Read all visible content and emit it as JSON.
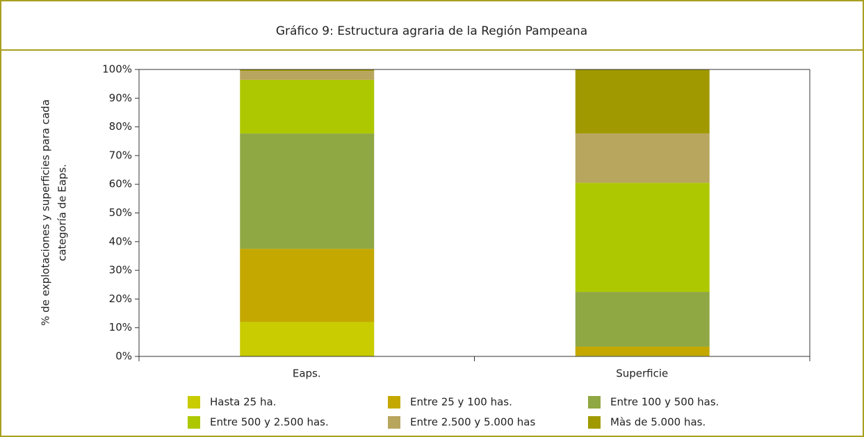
{
  "chart_data": {
    "type": "stacked_bar",
    "title": "Gráfico 9: Estructura agraria de la Región Pampeana",
    "ylabel": [
      "% de explotaciones y superficies para cada",
      "categoría de Eaps."
    ],
    "categories": [
      "Eaps.",
      "Superficie"
    ],
    "series": [
      {
        "name": "Hasta 25 ha.",
        "color": "#c8cc00",
        "values": [
          12,
          0.2
        ]
      },
      {
        "name": "Entre 25 y 100 has.",
        "color": "#c4a800",
        "values": [
          25.5,
          3.2
        ]
      },
      {
        "name": "Entre 100 y 500 has.",
        "color": "#8fa843",
        "values": [
          40.2,
          19.1
        ]
      },
      {
        "name": "Entre 500 y 2.500 has.",
        "color": "#adc800",
        "values": [
          18.7,
          38
        ]
      },
      {
        "name": "Entre 2.500 y 5.000 has",
        "color": "#b8a55e",
        "values": [
          3.1,
          17.2
        ]
      },
      {
        "name": "Màs de 5.000 has.",
        "color": "#a09a00",
        "values": [
          0.5,
          22.3
        ]
      }
    ],
    "ylim": [
      0,
      100
    ],
    "yticks": [
      {
        "value": 0,
        "label": "0%"
      },
      {
        "value": 10,
        "label": "10%"
      },
      {
        "value": 20,
        "label": "20%"
      },
      {
        "value": 30,
        "label": "30%"
      },
      {
        "value": 40,
        "label": "40%"
      },
      {
        "value": 50,
        "label": "50%"
      },
      {
        "value": 60,
        "label": "60%"
      },
      {
        "value": 70,
        "label": "70%"
      },
      {
        "value": 80,
        "label": "80%"
      },
      {
        "value": 90,
        "label": "90%"
      },
      {
        "value": 100,
        "label": "100%"
      }
    ]
  }
}
